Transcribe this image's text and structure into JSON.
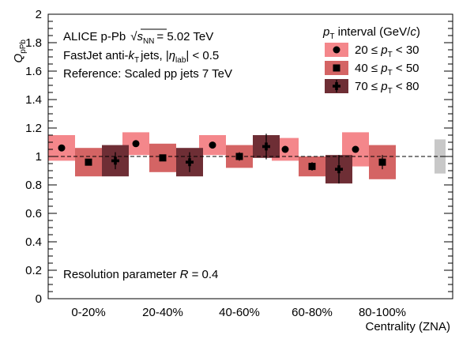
{
  "chart_data": {
    "type": "scatter",
    "ylabel": "Q",
    "ylabel_sub": "pPb",
    "xlabel": "Centrality (ZNA)",
    "ylim": [
      0,
      2
    ],
    "yticks": [
      "0",
      "0.2",
      "0.4",
      "0.6",
      "0.8",
      "1",
      "1.2",
      "1.4",
      "1.6",
      "1.8",
      "2"
    ],
    "categories": [
      "0-20%",
      "20-40%",
      "40-60%",
      "60-80%",
      "80-100%"
    ],
    "reference_line": 1,
    "annotations": {
      "line1_a": "ALICE p-Pb",
      "line1_sqrt": "√",
      "line1_s": "s",
      "line1_sub": "NN",
      "line1_b": "= 5.02 TeV",
      "line2_a": "FastJet anti-",
      "line2_k": "k",
      "line2_ksub": "T",
      "line2_b": "jets, |",
      "line2_eta": "η",
      "line2_etasub": "lab",
      "line2_c": "| < 0.5",
      "line3": "Reference: Scaled pp jets 7 TeV",
      "resolution_a": "Resolution parameter ",
      "resolution_r": "R",
      "resolution_b": " = 0.4"
    },
    "legend": {
      "title_p": "p",
      "title_sub": "T",
      "title_rest": " interval (GeV/",
      "title_c": "c",
      "title_end": ")",
      "placement": "top-right",
      "entries": [
        {
          "pre": "20 ≤ ",
          "p": "p",
          "sub": "T",
          "post": " < 30"
        },
        {
          "pre": "40 ≤ ",
          "p": "p",
          "sub": "T",
          "post": " < 50"
        },
        {
          "pre": "70 ≤ ",
          "p": "p",
          "sub": "T",
          "post": " < 80"
        }
      ]
    },
    "series": [
      {
        "marker": "circle",
        "color": "#f4878b",
        "values": [
          1.06,
          1.09,
          1.08,
          1.05,
          1.05
        ],
        "sys_err": [
          0.09,
          0.08,
          0.07,
          0.08,
          0.12
        ],
        "stat_err": [
          0.01,
          0.01,
          0.01,
          0.01,
          0.01
        ]
      },
      {
        "marker": "square",
        "color": "#d46464",
        "values": [
          0.96,
          0.99,
          1.0,
          0.93,
          0.96
        ],
        "sys_err": [
          0.1,
          0.1,
          0.08,
          0.07,
          0.12
        ],
        "stat_err": [
          0.02,
          0.02,
          0.03,
          0.03,
          0.05
        ]
      },
      {
        "marker": "cross",
        "color": "#6e2e35",
        "values": [
          0.97,
          0.96,
          1.07,
          0.91,
          null
        ],
        "sys_err": [
          0.11,
          0.1,
          0.08,
          0.1,
          null
        ],
        "stat_err": [
          0.06,
          0.07,
          0.09,
          0.1,
          null
        ]
      }
    ],
    "global_uncertainty": {
      "center": 1.0,
      "half_width": 0.12,
      "color": "#c8c8c8"
    }
  }
}
